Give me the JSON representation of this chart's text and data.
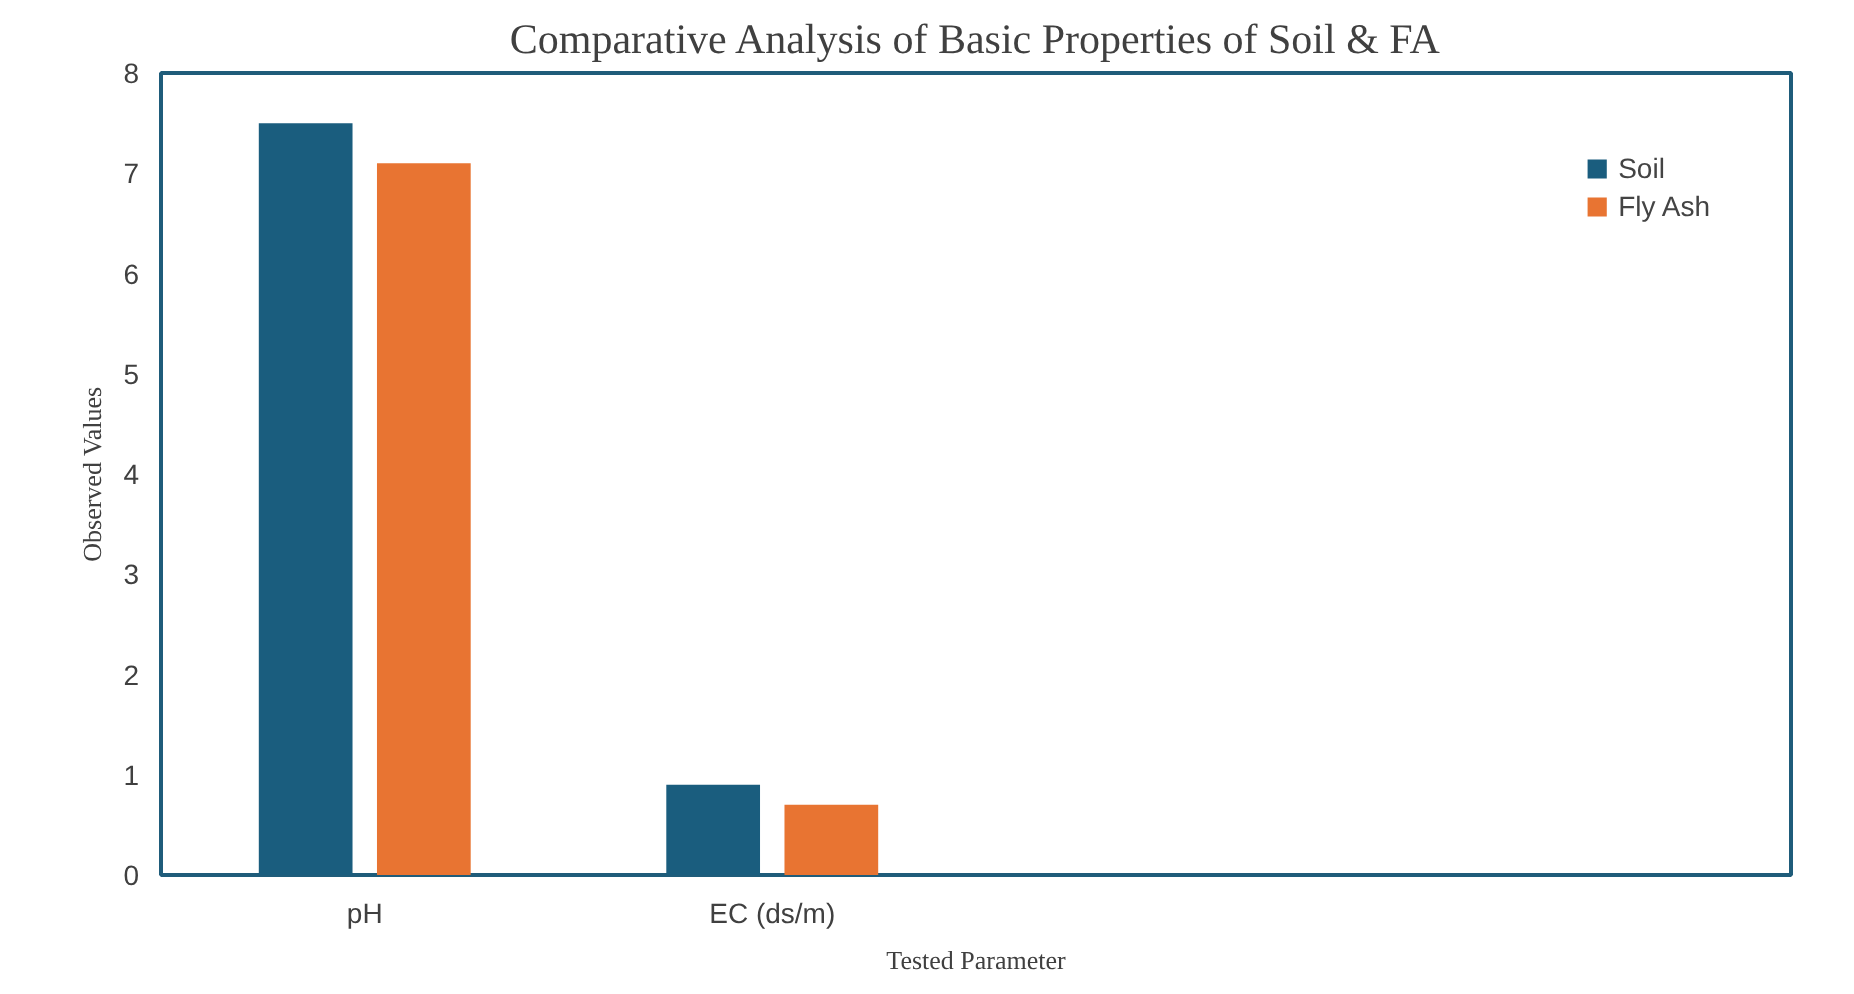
{
  "chart_data": {
    "type": "bar",
    "title": "Comparative Analysis of Basic Properties of Soil & FA",
    "xlabel": "Tested Parameter",
    "ylabel": "Observed Values",
    "categories": [
      "pH",
      "EC (ds/m)",
      null,
      null
    ],
    "series": [
      {
        "name": "Soil",
        "color": "#1a5d7e",
        "values": [
          7.5,
          0.9,
          null,
          null
        ]
      },
      {
        "name": "Fly Ash",
        "color": "#e87432",
        "values": [
          7.1,
          0.7,
          null,
          null
        ]
      }
    ],
    "ylim": [
      0,
      8
    ],
    "yticks": [
      0,
      1,
      2,
      3,
      4,
      5,
      6,
      7,
      8
    ],
    "grid": false,
    "legend": "top right"
  }
}
